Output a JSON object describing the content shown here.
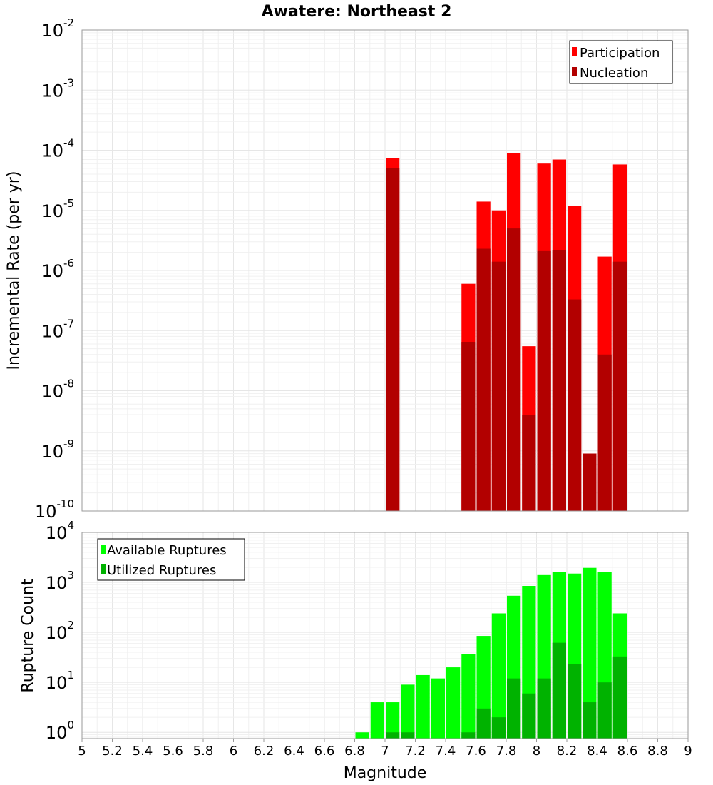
{
  "title": "Awatere: Northeast 2",
  "chart_data": [
    {
      "type": "bar",
      "title": "Awatere: Northeast 2",
      "ylabel": "Incremental Rate (per yr)",
      "xlabel": "",
      "yscale": "log",
      "xlim": [
        5,
        9
      ],
      "ylim": [
        1e-10,
        0.01
      ],
      "bin_width": 0.1,
      "y_ticks": [
        {
          "base": "10",
          "exp": "-2"
        },
        {
          "base": "10",
          "exp": "-3"
        },
        {
          "base": "10",
          "exp": "-4"
        },
        {
          "base": "10",
          "exp": "-5"
        },
        {
          "base": "10",
          "exp": "-6"
        },
        {
          "base": "10",
          "exp": "-7"
        },
        {
          "base": "10",
          "exp": "-8"
        },
        {
          "base": "10",
          "exp": "-9"
        },
        {
          "base": "10",
          "exp": "-10"
        }
      ],
      "legend_position": "top-right",
      "series": [
        {
          "name": "Participation",
          "color": "#ff0000",
          "x": [
            7.05,
            7.55,
            7.65,
            7.75,
            7.85,
            7.95,
            8.05,
            8.15,
            8.25,
            8.35,
            8.45,
            8.55
          ],
          "values": [
            7.5e-05,
            6e-07,
            1.4e-05,
            1e-05,
            9e-05,
            5.5e-08,
            6e-05,
            7e-05,
            1.2e-05,
            9e-10,
            1.7e-06,
            5.8e-05
          ]
        },
        {
          "name": "Nucleation",
          "color": "#b20000",
          "x": [
            7.05,
            7.55,
            7.65,
            7.75,
            7.85,
            7.95,
            8.05,
            8.15,
            8.25,
            8.35,
            8.45,
            8.55
          ],
          "values": [
            5e-05,
            6.5e-08,
            2.3e-06,
            1.4e-06,
            5e-06,
            4e-09,
            2.1e-06,
            2.2e-06,
            3.3e-07,
            9e-10,
            4e-08,
            1.4e-06
          ]
        }
      ]
    },
    {
      "type": "bar",
      "ylabel": "Rupture Count",
      "xlabel": "Magnitude",
      "yscale": "log",
      "xlim": [
        5,
        9
      ],
      "ylim": [
        0.75,
        10000
      ],
      "bin_width": 0.1,
      "x_ticks": [
        "5",
        "5.2",
        "5.4",
        "5.6",
        "5.8",
        "6",
        "6.2",
        "6.4",
        "6.6",
        "6.8",
        "7",
        "7.2",
        "7.4",
        "7.6",
        "7.8",
        "8",
        "8.2",
        "8.4",
        "8.6",
        "8.8",
        "9"
      ],
      "y_ticks": [
        {
          "base": "10",
          "exp": "4"
        },
        {
          "base": "10",
          "exp": "3"
        },
        {
          "base": "10",
          "exp": "2"
        },
        {
          "base": "10",
          "exp": "1"
        },
        {
          "base": "10",
          "exp": "0"
        }
      ],
      "legend_position": "top-left",
      "series": [
        {
          "name": "Available Ruptures",
          "color": "#00ff00",
          "x": [
            6.85,
            6.95,
            7.05,
            7.15,
            7.25,
            7.35,
            7.45,
            7.55,
            7.65,
            7.75,
            7.85,
            7.95,
            8.05,
            8.15,
            8.25,
            8.35,
            8.45,
            8.55
          ],
          "values": [
            1,
            4,
            4,
            9,
            14,
            12,
            20,
            37,
            85,
            240,
            540,
            850,
            1400,
            1600,
            1500,
            1950,
            1600,
            240
          ]
        },
        {
          "name": "Utilized Ruptures",
          "color": "#00b200",
          "x": [
            7.05,
            7.15,
            7.55,
            7.65,
            7.75,
            7.85,
            7.95,
            8.05,
            8.15,
            8.25,
            8.35,
            8.45,
            8.55
          ],
          "values": [
            1,
            1,
            1,
            3,
            2,
            12,
            6,
            12,
            62,
            23,
            4,
            10,
            33
          ]
        }
      ]
    }
  ]
}
